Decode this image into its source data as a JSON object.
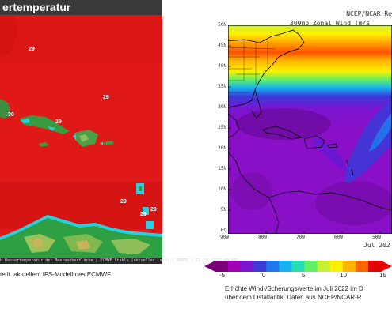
{
  "left_panel": {
    "title": "ertemperatur",
    "sst_labels": [
      "29",
      "30",
      "29",
      "29",
      "29",
      "29",
      "29"
    ],
    "footer_text": "h Wassertemperatur der Meeresoberfläche | ECMWF Stable (aktueller Lauf) | 00UTC | 21 JUL 2022 00 UTC",
    "caption": "te lt. aktuellem IFS-Modell des ECMWF.",
    "colors": {
      "warm_sea": "#e01818",
      "land_low": "#2ea043",
      "land_high": "#c8b45a"
    }
  },
  "right_panel": {
    "title_line1": "NCEP/NCAR Re",
    "title_line2": "300mb Zonal Wind (m/s",
    "lat_labels": [
      "50N",
      "45N",
      "40N",
      "35N",
      "30N",
      "25N",
      "20N",
      "15N",
      "10N",
      "5N",
      "EQ"
    ],
    "lon_labels": [
      "90W",
      "80W",
      "70W",
      "60W",
      "50W"
    ],
    "date_label": "Jul 202",
    "colorbar_ticks": [
      "-5",
      "0",
      "5",
      "10",
      "15"
    ],
    "colorbar_colors": [
      "#7a0078",
      "#a000b8",
      "#7a14d0",
      "#3a3ad8",
      "#1e78ec",
      "#14b4f0",
      "#28dcb4",
      "#64f064",
      "#c8f032",
      "#fff000",
      "#ffb400",
      "#ff6400",
      "#e60000"
    ],
    "caption_line1": "Erhöhte Wind-/Scherungswerte im Juli 2022 im D",
    "caption_line2": "über dem Ostatlantik. Daten aus NCEP/NCAR-R"
  }
}
